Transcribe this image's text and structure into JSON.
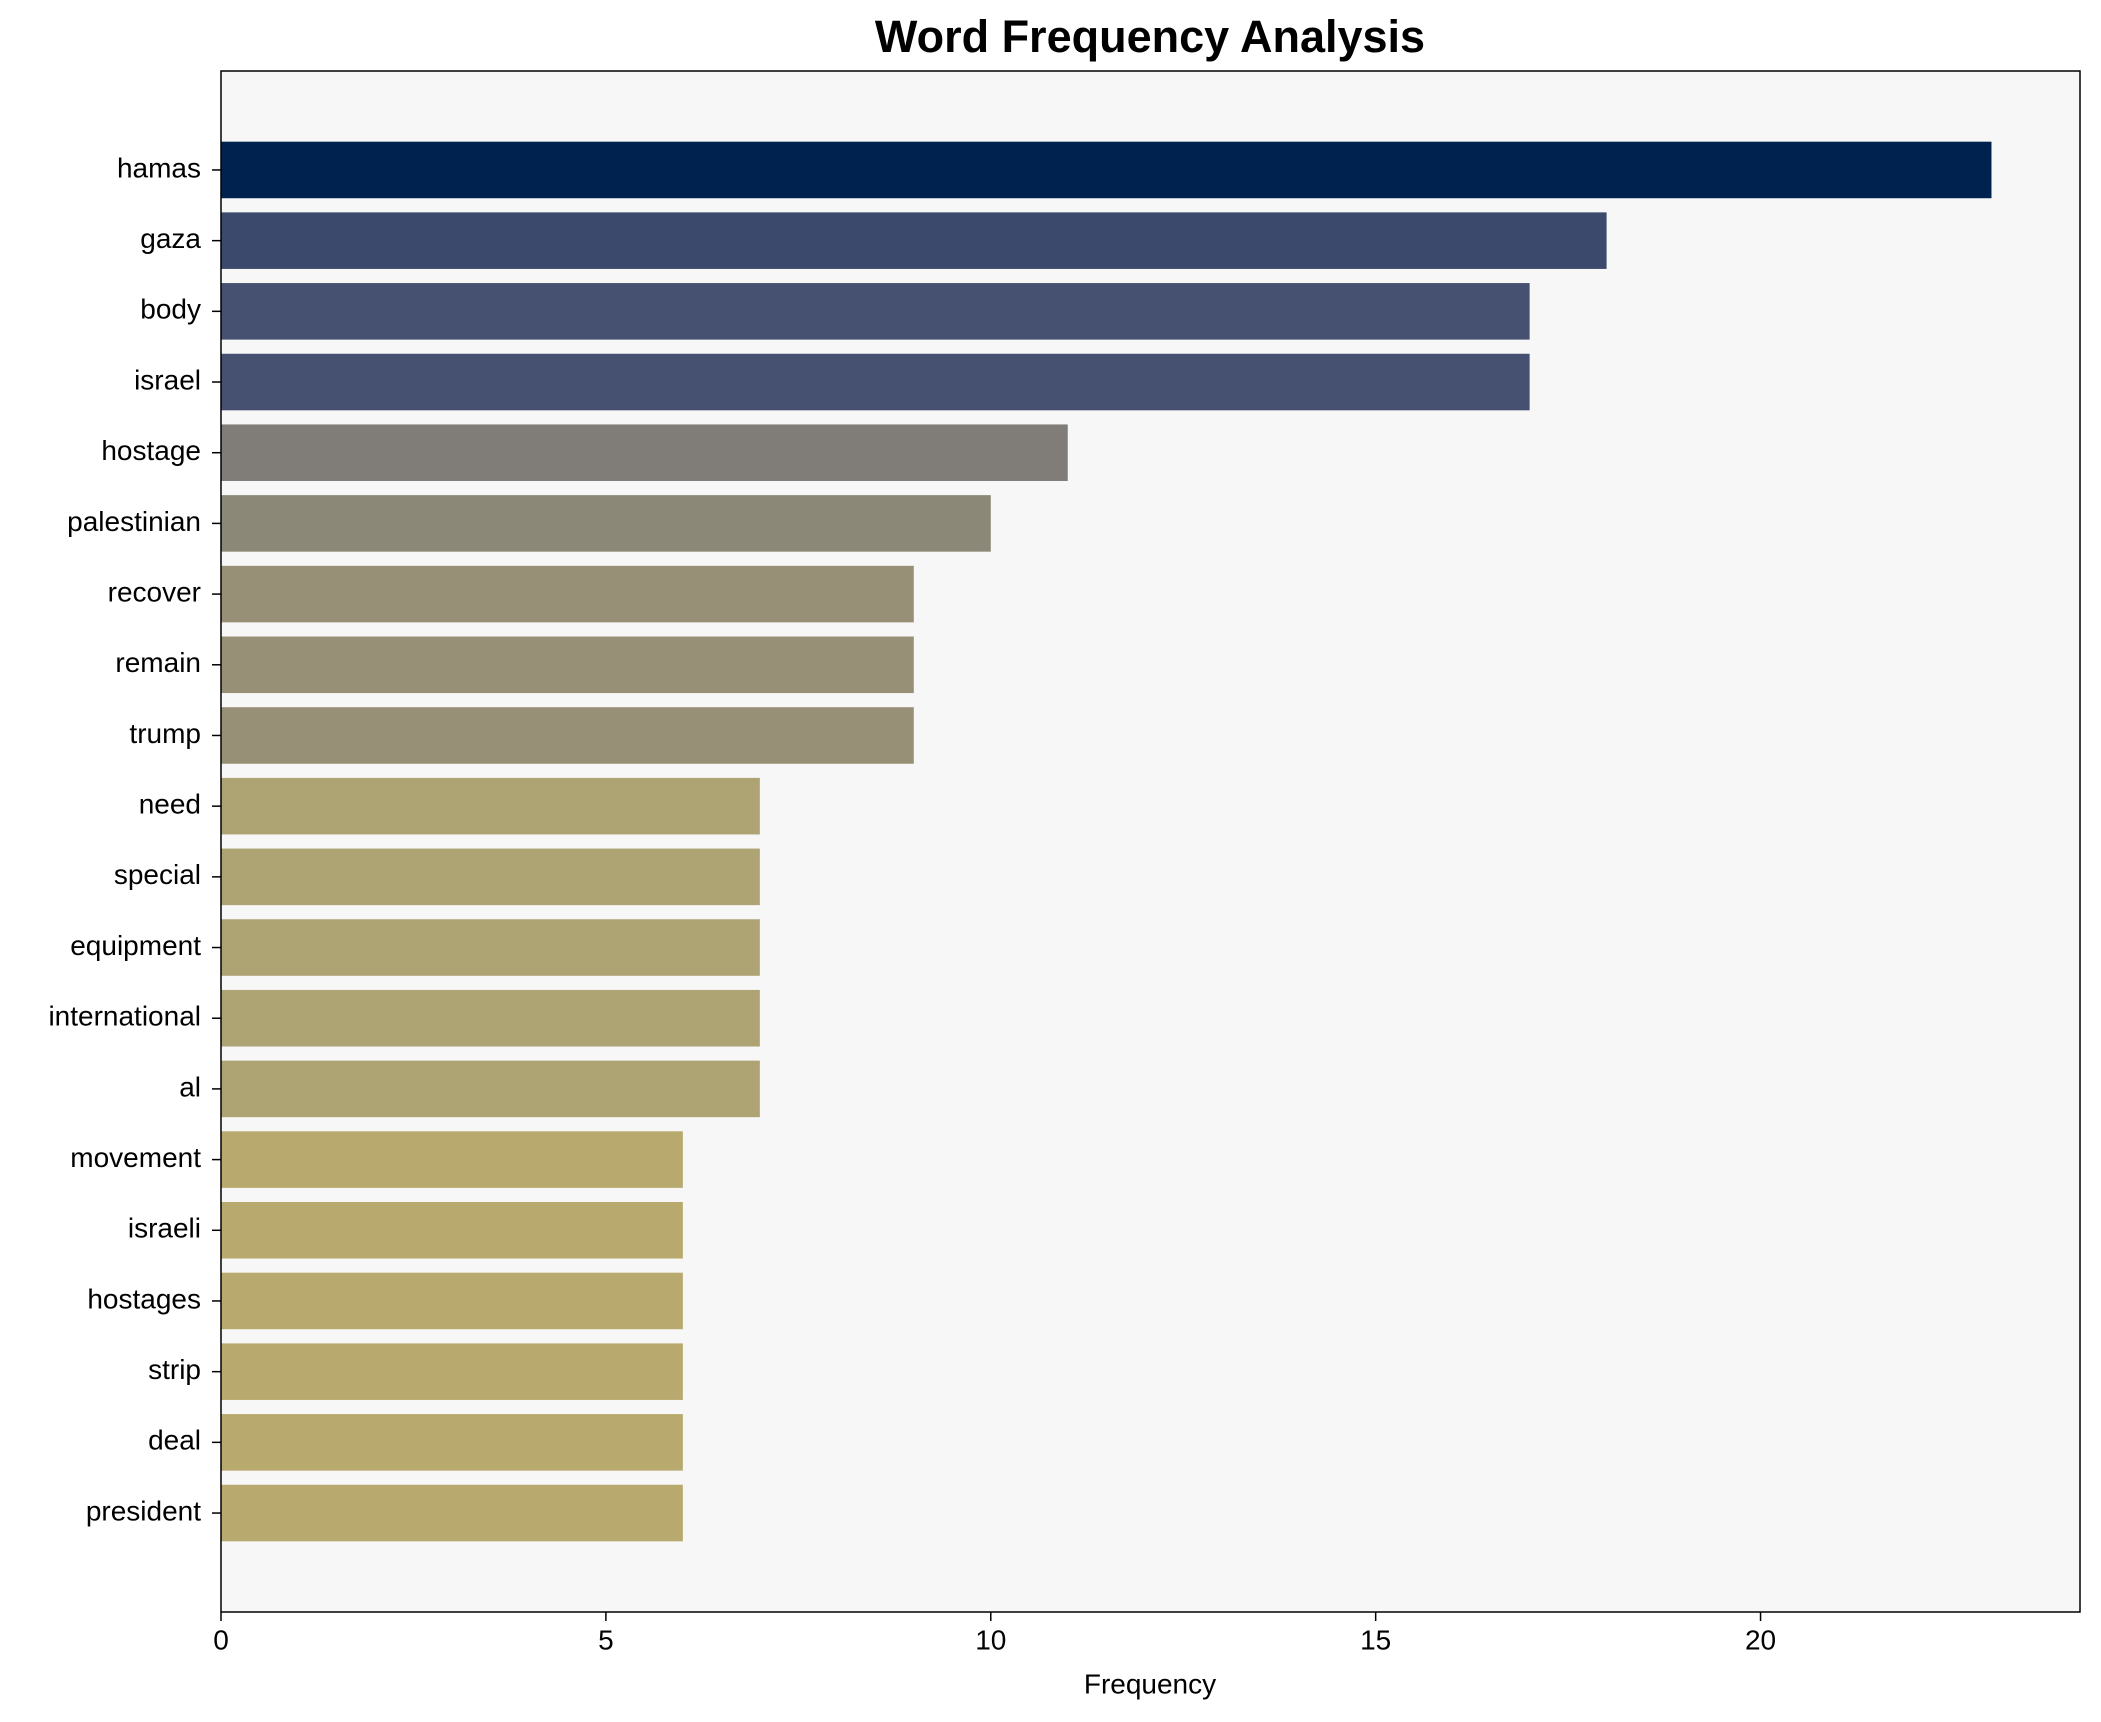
{
  "chart_data": {
    "type": "barh",
    "title": "Word Frequency Analysis",
    "x_label": "Frequency",
    "categories": [
      "hamas",
      "gaza",
      "body",
      "israel",
      "hostage",
      "palestinian",
      "recover",
      "remain",
      "trump",
      "need",
      "special",
      "equipment",
      "international",
      "al",
      "movement",
      "israeli",
      "hostages",
      "strip",
      "deal",
      "president"
    ],
    "values": [
      23,
      18,
      17,
      17,
      11,
      10,
      9,
      9,
      9,
      7,
      7,
      7,
      7,
      7,
      6,
      6,
      6,
      6,
      6,
      6
    ],
    "colors": [
      "#00224e",
      "#3b496c",
      "#465070",
      "#465070",
      "#807d78",
      "#8b8878",
      "#979077",
      "#979077",
      "#979077",
      "#ada373",
      "#ada373",
      "#ada373",
      "#ada373",
      "#ada373",
      "#b8aa6e",
      "#b8aa6e",
      "#b8aa6e",
      "#b8aa6e",
      "#b8aa6e",
      "#b8aa6e"
    ],
    "xlim": [
      0,
      24.15
    ],
    "xticks": [
      0,
      5,
      10,
      15,
      20
    ]
  }
}
